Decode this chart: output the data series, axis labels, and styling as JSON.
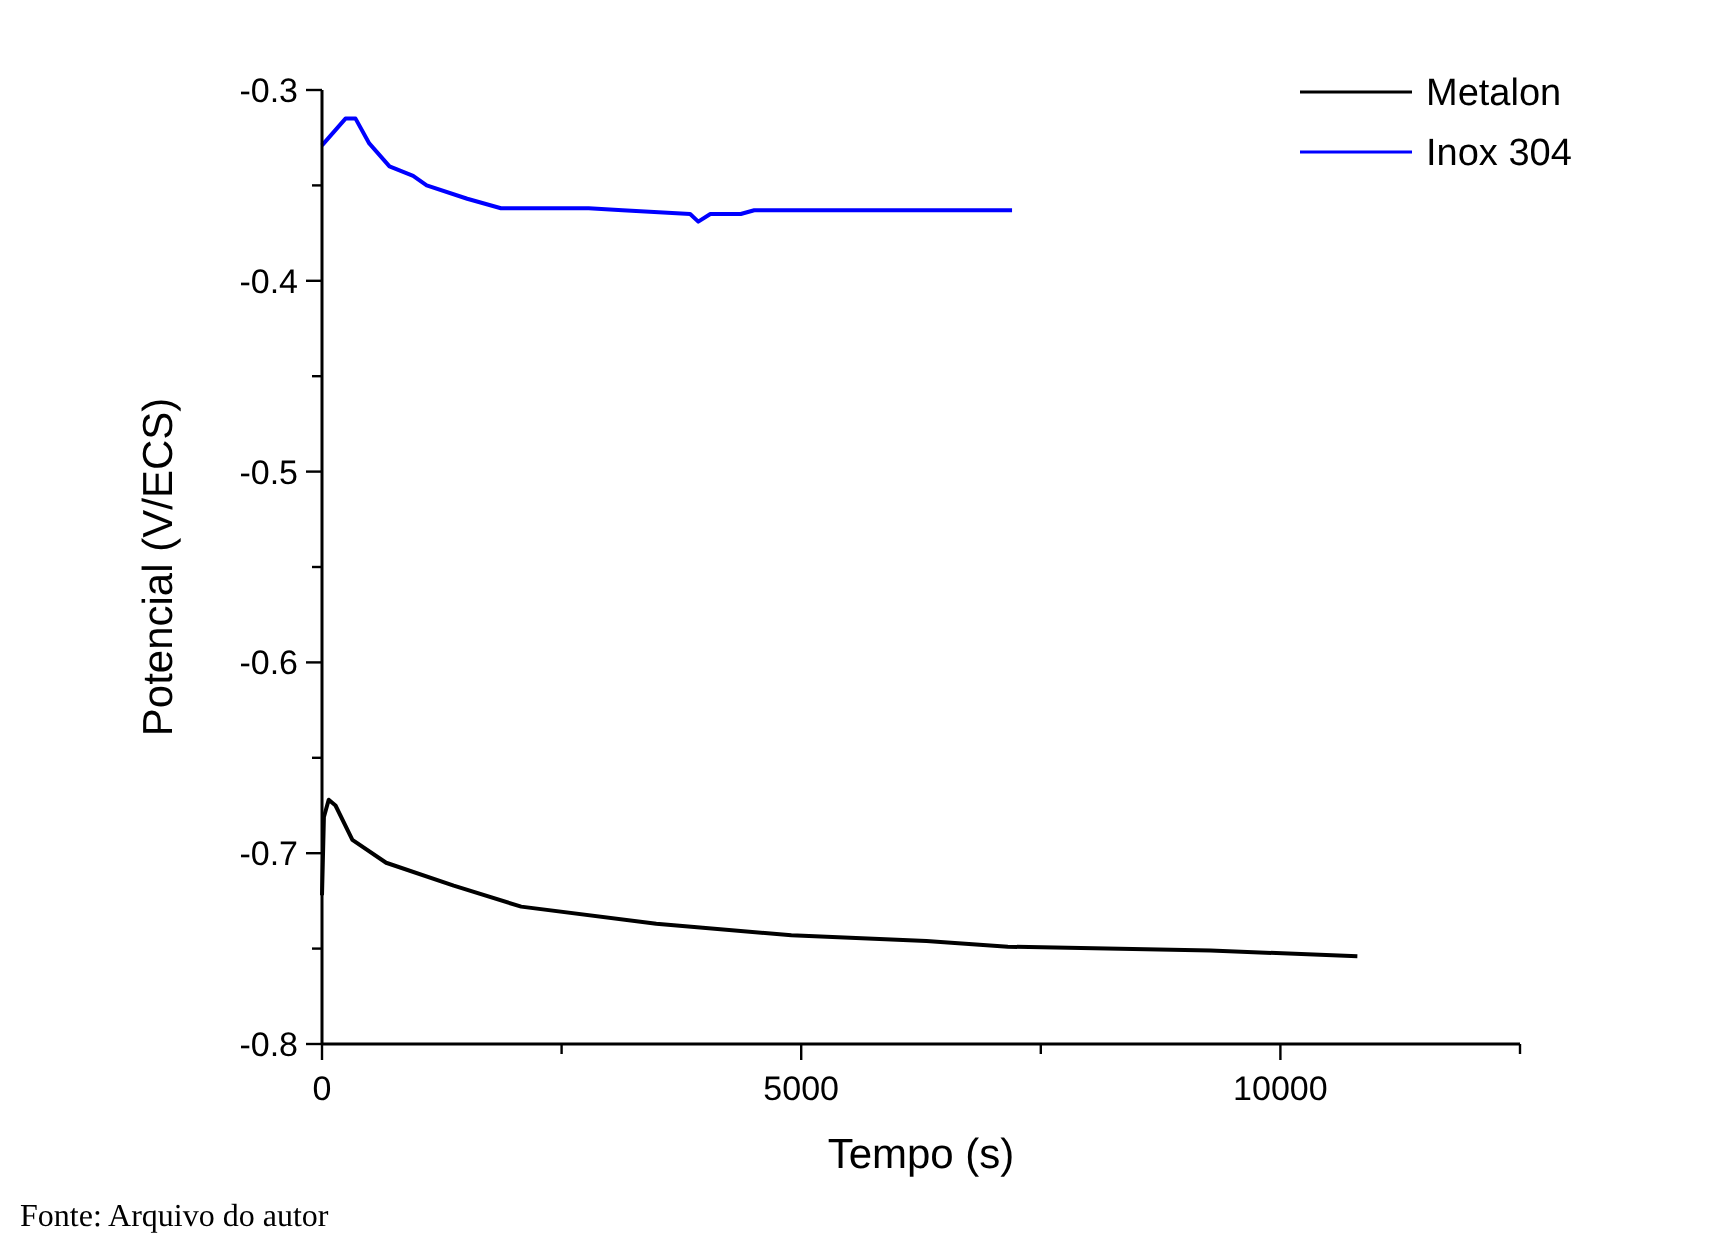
{
  "chart_data": {
    "type": "line",
    "xlabel": "Tempo (s)",
    "ylabel": "Potencial (V/ECS)",
    "xlim": [
      0,
      12500
    ],
    "xticks": [
      0,
      {
        "value": 2500,
        "label": null
      },
      5000,
      {
        "value": 7500,
        "label": null
      },
      10000,
      {
        "value": 12500,
        "label": null
      }
    ],
    "ylim": [
      -0.8,
      -0.3
    ],
    "yticks": [
      -0.3,
      {
        "value": -0.35,
        "label": null
      },
      -0.4,
      {
        "value": -0.45,
        "label": null
      },
      -0.5,
      {
        "value": -0.55,
        "label": null
      },
      -0.6,
      {
        "value": -0.65,
        "label": null
      },
      -0.7,
      {
        "value": -0.75,
        "label": null
      },
      -0.8
    ],
    "grid": false,
    "legend": "top right",
    "marker": "none",
    "line_style": "solid",
    "annotations": [
      "Fonte: Arquivo do autor"
    ],
    "series": [
      {
        "name": "Metalon",
        "color": "#000000",
        "x": [
          0,
          20,
          70,
          141,
          317,
          669,
          1374,
          2078,
          3488,
          4897,
          6307,
          7156,
          9271,
          10803
        ],
        "values": [
          -0.722,
          -0.681,
          -0.672,
          -0.675,
          -0.693,
          -0.705,
          -0.717,
          -0.728,
          -0.737,
          -0.743,
          -0.746,
          -0.749,
          -0.751,
          -0.754
        ]
      },
      {
        "name": "Inox 304",
        "color": "#0000ff",
        "x": [
          0,
          245,
          350,
          493,
          704,
          951,
          1092,
          1515,
          1867,
          2783,
          3136,
          3841,
          3926,
          4052,
          4369,
          4510,
          6307,
          7200
        ],
        "values": [
          -0.329,
          -0.315,
          -0.315,
          -0.328,
          -0.34,
          -0.345,
          -0.35,
          -0.357,
          -0.362,
          -0.362,
          -0.363,
          -0.365,
          -0.369,
          -0.365,
          -0.365,
          -0.363,
          -0.363,
          -0.363
        ]
      }
    ]
  }
}
